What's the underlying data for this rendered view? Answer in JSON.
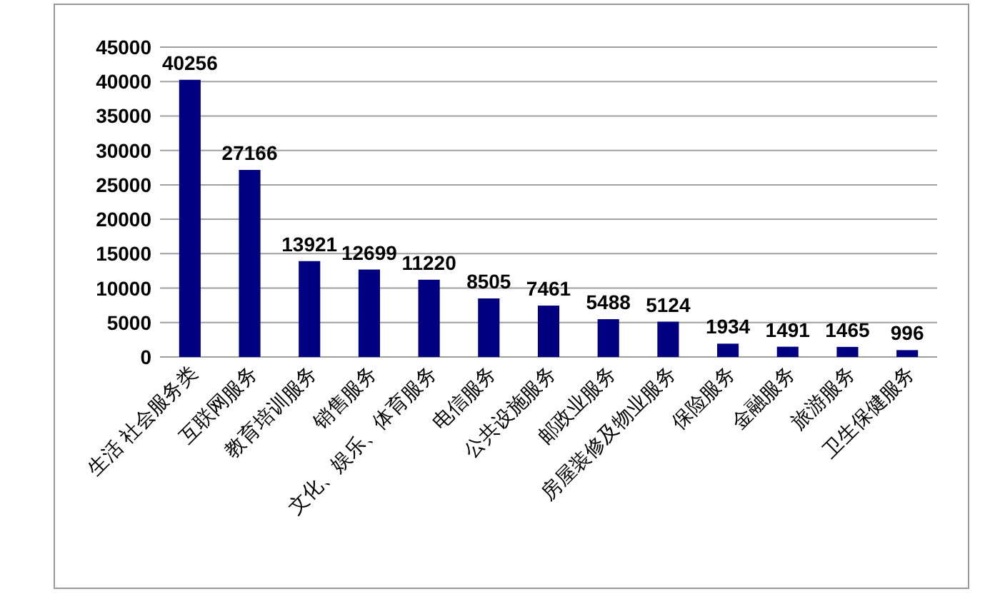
{
  "chart_data": {
    "type": "bar",
    "categories": [
      "生活 社会服务类",
      "互联网服务",
      "教育培训服务",
      "销售服务",
      "文化、娱乐、体育服务",
      "电信服务",
      "公共设施服务",
      "邮政业服务",
      "房屋装修及物业服务",
      "保险服务",
      "金融服务",
      "旅游服务",
      "卫生保健服务"
    ],
    "values": [
      40256,
      27166,
      13921,
      12699,
      11220,
      8505,
      7461,
      5488,
      5124,
      1934,
      1491,
      1465,
      996
    ],
    "color": "#000080",
    "ylim": [
      0,
      45000
    ],
    "yticks": [
      0,
      5000,
      10000,
      15000,
      20000,
      25000,
      30000,
      35000,
      40000,
      45000
    ],
    "grid": "y",
    "data_labels": true
  }
}
